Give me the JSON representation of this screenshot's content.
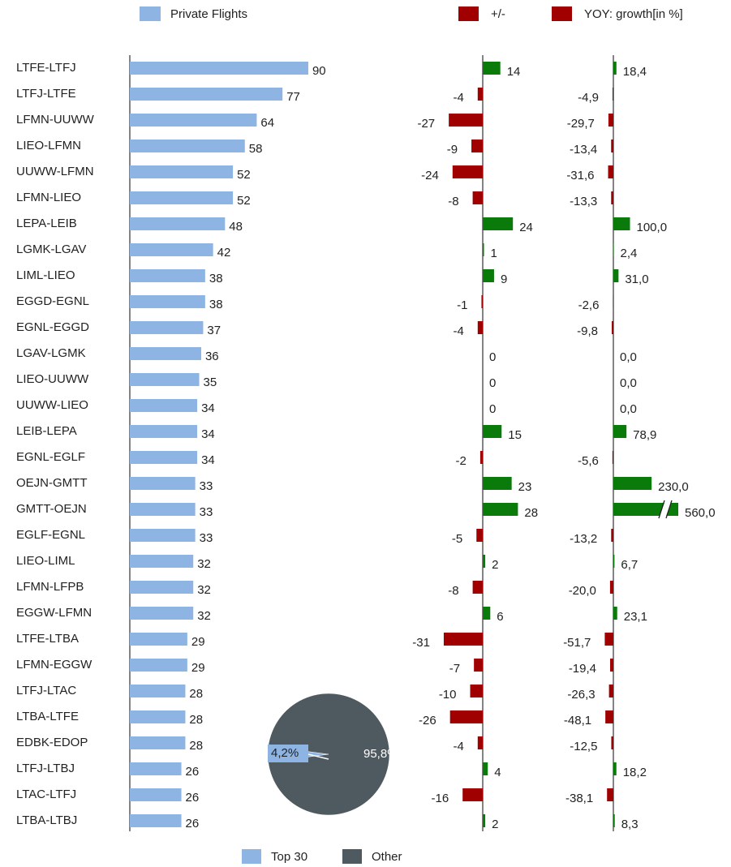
{
  "chart_data": [
    {
      "type": "bar",
      "categories": [
        "LTFE-LTFJ",
        "LTFJ-LTFE",
        "LFMN-UUWW",
        "LIEO-LFMN",
        "UUWW-LFMN",
        "LFMN-LIEO",
        "LEPA-LEIB",
        "LGMK-LGAV",
        "LIML-LIEO",
        "EGGD-EGNL",
        "EGNL-EGGD",
        "LGAV-LGMK",
        "LIEO-UUWW",
        "UUWW-LIEO",
        "LEIB-LEPA",
        "EGNL-EGLF",
        "OEJN-GMTT",
        "GMTT-OEJN",
        "EGLF-EGNL",
        "LIEO-LIML",
        "LFMN-LFPB",
        "EGGW-LFMN",
        "LTFE-LTBA",
        "LFMN-EGGW",
        "LTFJ-LTAC",
        "LTBA-LTFE",
        "EDBK-EDOP",
        "LTFJ-LTBJ",
        "LTAC-LTFJ",
        "LTBA-LTBJ"
      ],
      "series": [
        {
          "name": "Private Flights",
          "color": "#8db4e2",
          "values": [
            90,
            77,
            64,
            58,
            52,
            52,
            48,
            42,
            38,
            38,
            37,
            36,
            35,
            34,
            34,
            34,
            33,
            33,
            33,
            32,
            32,
            32,
            29,
            29,
            28,
            28,
            28,
            26,
            26,
            26
          ]
        }
      ]
    },
    {
      "type": "diverging",
      "series": [
        {
          "name": "+/-",
          "color": "#a00000",
          "positive_color": "#0a7a0a",
          "values": [
            14,
            -4,
            -27,
            -9,
            -24,
            -8,
            24,
            1,
            9,
            -1,
            -4,
            0,
            0,
            0,
            15,
            -2,
            23,
            28,
            -5,
            2,
            -8,
            6,
            -31,
            -7,
            -10,
            -26,
            -4,
            4,
            -16,
            2
          ]
        }
      ]
    },
    {
      "type": "diverging",
      "axis_break": true,
      "series": [
        {
          "name": "YOY: growth[in %]",
          "color": "#a00000",
          "positive_color": "#0a7a0a",
          "values": [
            18.4,
            -4.9,
            -29.7,
            -13.4,
            -31.6,
            -13.3,
            100.0,
            2.4,
            31.0,
            -2.6,
            -9.8,
            0.0,
            0.0,
            0.0,
            78.9,
            -5.6,
            230.0,
            560.0,
            -13.2,
            6.7,
            -20.0,
            23.1,
            -51.7,
            -19.4,
            -26.3,
            -48.1,
            -12.5,
            18.2,
            -38.1,
            8.3
          ],
          "value_labels": [
            "18,4",
            "-4,9",
            "-29,7",
            "-13,4",
            "-31,6",
            "-13,3",
            "100,0",
            "2,4",
            "31,0",
            "-2,6",
            "-9,8",
            "0,0",
            "0,0",
            "0,0",
            "78,9",
            "-5,6",
            "230,0",
            "560,0",
            "-13,2",
            "6,7",
            "-20,0",
            "23,1",
            "-51,7",
            "-19,4",
            "-26,3",
            "-48,1",
            "-12,5",
            "18,2",
            "-38,1",
            "8,3"
          ]
        }
      ]
    },
    {
      "type": "pie",
      "categories": [
        "Top 30",
        "Other"
      ],
      "values": [
        4.2,
        95.8
      ],
      "value_labels": [
        "4,2%",
        "95,8%"
      ],
      "colors": [
        "#8db4e2",
        "#4f5a60"
      ]
    }
  ]
}
